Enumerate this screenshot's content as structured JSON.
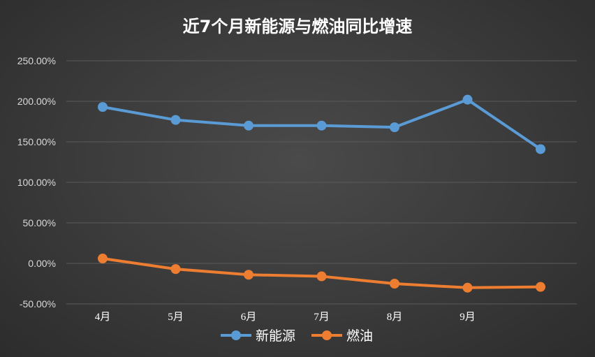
{
  "chart_data": {
    "type": "line",
    "title": "近7个月新能源与燃油同比增速",
    "categories": [
      "4月",
      "5月",
      "6月",
      "7月",
      "8月",
      "9月",
      ""
    ],
    "series": [
      {
        "name": "新能源",
        "values": [
          193,
          177,
          170,
          170,
          168,
          202,
          141
        ],
        "color": "#5b9bd5"
      },
      {
        "name": "燃油",
        "values": [
          6,
          -7,
          -14,
          -16,
          -25,
          -30,
          -29
        ],
        "color": "#ed7d31"
      }
    ],
    "yticks": [
      "250.00%",
      "200.00%",
      "150.00%",
      "100.00%",
      "50.00%",
      "0.00%",
      "-50.00%"
    ],
    "ylim": [
      -50,
      250
    ],
    "ytick_step": 50,
    "grid": true,
    "legend_position": "bottom",
    "colors": {
      "title": "#ffffff",
      "axis_text": "#d9d9d9",
      "grid": "#5a5a5a"
    }
  }
}
